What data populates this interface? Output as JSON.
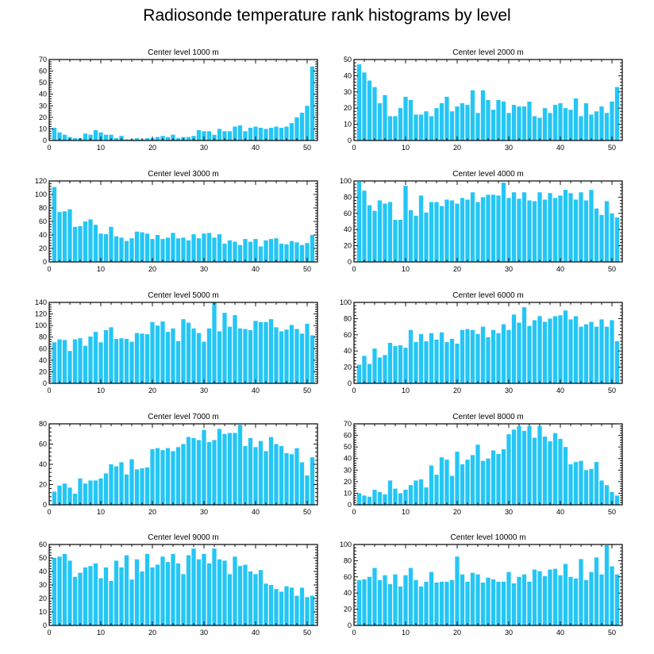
{
  "figure": {
    "title": "Radiosonde temperature rank histograms by level"
  },
  "style": {
    "bar_color": "#24c6f5",
    "axis_color": "#000000"
  },
  "chart_data": [
    {
      "type": "bar",
      "title": "Center level 1000 m",
      "xlim": [
        0,
        52
      ],
      "xticks": [
        0,
        10,
        20,
        30,
        40,
        50
      ],
      "ylim": [
        0,
        70
      ],
      "yticks": [
        0,
        10,
        20,
        30,
        40,
        50,
        60,
        70
      ],
      "values": [
        11,
        7,
        5,
        3,
        2,
        2,
        6,
        5,
        9,
        7,
        5,
        5,
        2,
        4,
        1,
        1,
        2,
        1,
        2,
        2,
        3,
        4,
        3,
        5,
        2,
        3,
        3,
        4,
        9,
        8,
        8,
        5,
        10,
        8,
        8,
        12,
        13,
        8,
        11,
        12,
        11,
        10,
        11,
        12,
        11,
        12,
        15,
        20,
        24,
        30,
        64
      ]
    },
    {
      "type": "bar",
      "title": "Center level 2000 m",
      "xlim": [
        0,
        52
      ],
      "xticks": [
        0,
        10,
        20,
        30,
        40,
        50
      ],
      "ylim": [
        0,
        50
      ],
      "yticks": [
        0,
        10,
        20,
        30,
        40,
        50
      ],
      "values": [
        47,
        42,
        37,
        33,
        23,
        28,
        15,
        15,
        20,
        27,
        25,
        16,
        16,
        18,
        15,
        20,
        23,
        27,
        18,
        21,
        23,
        22,
        31,
        17,
        31,
        25,
        19,
        25,
        24,
        17,
        22,
        21,
        21,
        24,
        15,
        14,
        20,
        17,
        22,
        23,
        20,
        19,
        26,
        15,
        23,
        16,
        18,
        21,
        17,
        24,
        33
      ]
    },
    {
      "type": "bar",
      "title": "Center level 3000 m",
      "xlim": [
        0,
        52
      ],
      "xticks": [
        0,
        10,
        20,
        30,
        40,
        50
      ],
      "ylim": [
        0,
        120
      ],
      "yticks": [
        0,
        20,
        40,
        60,
        80,
        100,
        120
      ],
      "values": [
        111,
        74,
        75,
        78,
        52,
        53,
        60,
        63,
        55,
        42,
        41,
        52,
        38,
        36,
        31,
        35,
        45,
        44,
        42,
        34,
        40,
        34,
        36,
        43,
        35,
        36,
        32,
        41,
        35,
        42,
        43,
        36,
        41,
        27,
        32,
        30,
        25,
        34,
        30,
        34,
        23,
        32,
        34,
        35,
        27,
        26,
        31,
        29,
        25,
        28,
        40
      ]
    },
    {
      "type": "bar",
      "title": "Center level 4000 m",
      "xlim": [
        0,
        52
      ],
      "xticks": [
        0,
        10,
        20,
        30,
        40,
        50
      ],
      "ylim": [
        0,
        100
      ],
      "yticks": [
        0,
        20,
        40,
        60,
        80,
        100
      ],
      "values": [
        99,
        88,
        70,
        63,
        76,
        72,
        74,
        52,
        52,
        94,
        64,
        57,
        82,
        61,
        74,
        74,
        69,
        77,
        76,
        72,
        79,
        77,
        86,
        74,
        80,
        83,
        83,
        82,
        98,
        79,
        86,
        78,
        86,
        76,
        75,
        86,
        77,
        85,
        79,
        82,
        89,
        85,
        77,
        86,
        76,
        89,
        66,
        58,
        75,
        60,
        55
      ]
    },
    {
      "type": "bar",
      "title": "Center level 5000 m",
      "xlim": [
        0,
        52
      ],
      "xticks": [
        0,
        10,
        20,
        30,
        40,
        50
      ],
      "ylim": [
        0,
        140
      ],
      "yticks": [
        0,
        20,
        40,
        60,
        80,
        100,
        120,
        140
      ],
      "values": [
        71,
        76,
        75,
        56,
        76,
        78,
        65,
        81,
        89,
        71,
        92,
        97,
        77,
        78,
        77,
        72,
        87,
        86,
        85,
        106,
        100,
        107,
        89,
        95,
        73,
        111,
        105,
        95,
        87,
        72,
        95,
        140,
        90,
        122,
        98,
        118,
        95,
        94,
        92,
        108,
        106,
        106,
        111,
        97,
        90,
        93,
        101,
        94,
        86,
        103,
        83
      ]
    },
    {
      "type": "bar",
      "title": "Center level 6000 m",
      "xlim": [
        0,
        52
      ],
      "xticks": [
        0,
        10,
        20,
        30,
        40,
        50
      ],
      "ylim": [
        0,
        100
      ],
      "yticks": [
        0,
        20,
        40,
        60,
        80,
        100
      ],
      "values": [
        23,
        34,
        24,
        43,
        32,
        35,
        50,
        46,
        47,
        44,
        66,
        51,
        61,
        52,
        62,
        54,
        63,
        51,
        55,
        49,
        66,
        67,
        66,
        61,
        70,
        57,
        66,
        62,
        73,
        66,
        85,
        75,
        94,
        71,
        78,
        83,
        76,
        80,
        83,
        84,
        90,
        79,
        83,
        70,
        73,
        76,
        70,
        79,
        70,
        78,
        52
      ]
    },
    {
      "type": "bar",
      "title": "Center level 7000 m",
      "xlim": [
        0,
        52
      ],
      "xticks": [
        0,
        10,
        20,
        30,
        40,
        50
      ],
      "ylim": [
        0,
        80
      ],
      "yticks": [
        0,
        20,
        40,
        60,
        80
      ],
      "values": [
        13,
        19,
        21,
        17,
        11,
        26,
        21,
        24,
        24,
        26,
        31,
        40,
        38,
        42,
        30,
        45,
        35,
        36,
        37,
        55,
        56,
        54,
        56,
        53,
        57,
        60,
        67,
        66,
        64,
        74,
        62,
        64,
        75,
        70,
        71,
        71,
        79,
        58,
        66,
        57,
        63,
        53,
        67,
        60,
        58,
        51,
        50,
        56,
        42,
        29,
        47
      ]
    },
    {
      "type": "bar",
      "title": "Center level 8000 m",
      "xlim": [
        0,
        52
      ],
      "xticks": [
        0,
        10,
        20,
        30,
        40,
        50
      ],
      "ylim": [
        0,
        70
      ],
      "yticks": [
        0,
        10,
        20,
        30,
        40,
        50,
        60,
        70
      ],
      "values": [
        10,
        8,
        7,
        13,
        11,
        9,
        21,
        14,
        10,
        13,
        17,
        21,
        22,
        15,
        34,
        26,
        41,
        39,
        25,
        46,
        35,
        39,
        43,
        52,
        38,
        40,
        47,
        44,
        48,
        61,
        65,
        68,
        64,
        68,
        58,
        68,
        59,
        55,
        62,
        57,
        50,
        35,
        37,
        38,
        30,
        31,
        37,
        21,
        17,
        11,
        8
      ]
    },
    {
      "type": "bar",
      "title": "Center level 9000 m",
      "xlim": [
        0,
        52
      ],
      "xticks": [
        0,
        10,
        20,
        30,
        40,
        50
      ],
      "ylim": [
        0,
        60
      ],
      "yticks": [
        0,
        10,
        20,
        30,
        40,
        50,
        60
      ],
      "values": [
        50,
        51,
        53,
        48,
        36,
        39,
        43,
        44,
        46,
        35,
        43,
        33,
        48,
        43,
        52,
        34,
        49,
        40,
        53,
        43,
        45,
        51,
        47,
        53,
        46,
        38,
        52,
        57,
        49,
        53,
        46,
        57,
        49,
        48,
        38,
        51,
        44,
        45,
        40,
        38,
        41,
        31,
        30,
        27,
        25,
        29,
        28,
        22,
        28,
        21,
        22
      ]
    },
    {
      "type": "bar",
      "title": "Center level 10000 m",
      "xlim": [
        0,
        52
      ],
      "xticks": [
        0,
        10,
        20,
        30,
        40,
        50
      ],
      "ylim": [
        0,
        100
      ],
      "yticks": [
        0,
        20,
        40,
        60,
        80,
        100
      ],
      "values": [
        56,
        57,
        60,
        71,
        56,
        62,
        51,
        63,
        48,
        62,
        71,
        56,
        48,
        54,
        66,
        53,
        54,
        54,
        56,
        85,
        63,
        54,
        65,
        63,
        53,
        59,
        57,
        54,
        54,
        66,
        52,
        60,
        63,
        54,
        69,
        67,
        61,
        69,
        70,
        62,
        76,
        60,
        58,
        82,
        56,
        66,
        84,
        63,
        99,
        73,
        63
      ]
    }
  ]
}
